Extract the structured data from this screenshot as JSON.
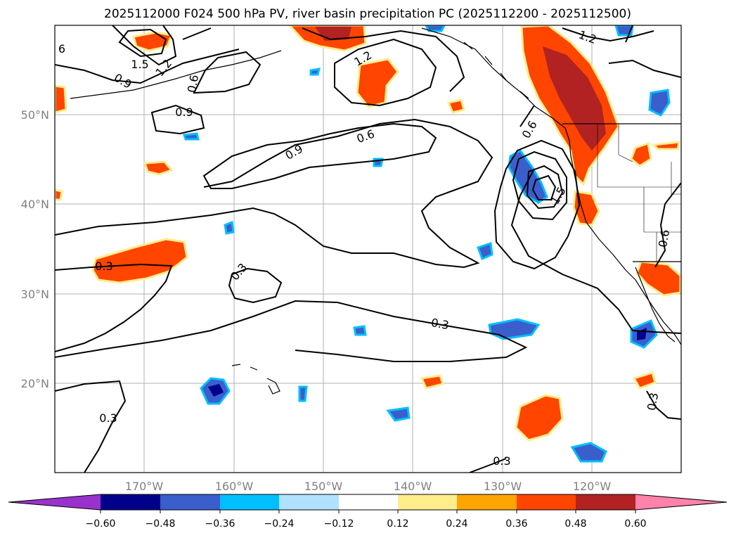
{
  "title": "2025112000 F024 500 hPa PV, river basin precipitation PC (2025112200 - 2025112500)",
  "axes": {
    "x_ticks": [
      "170°W",
      "160°W",
      "150°W",
      "140°W",
      "130°W",
      "120°W"
    ],
    "y_ticks": [
      "50°N",
      "40°N",
      "30°N",
      "20°N"
    ]
  },
  "contour_labels": [
    "6",
    "1.5",
    "1.2",
    "0.9",
    "0.6",
    "0.9",
    "1.2",
    "0.6",
    "0.9",
    "1.2",
    "0.6",
    "1.5",
    "0.3",
    "0.3",
    "0.3",
    "0.3",
    "0.3",
    "0.3",
    "0.6"
  ],
  "colorbar": {
    "tick_labels": [
      "−0.60",
      "−0.48",
      "−0.36",
      "−0.24",
      "−0.12",
      "0.12",
      "0.24",
      "0.36",
      "0.48",
      "0.60"
    ],
    "colors": [
      "#9932cc",
      "#00008b",
      "#3a5fcd",
      "#00bfff",
      "#b0e2ff",
      "#ffffff",
      "#ffec8b",
      "#ffa500",
      "#ff4500",
      "#b22222",
      "#ff82ab"
    ]
  },
  "colors": {
    "pos_low": "#ffec8b",
    "pos_mid": "#ffa500",
    "pos_high": "#ff4500",
    "pos_max": "#b22222",
    "neg_low": "#b0e2ff",
    "neg_mid": "#00bfff",
    "neg_high": "#3a5fcd",
    "neg_max": "#00008b"
  }
}
